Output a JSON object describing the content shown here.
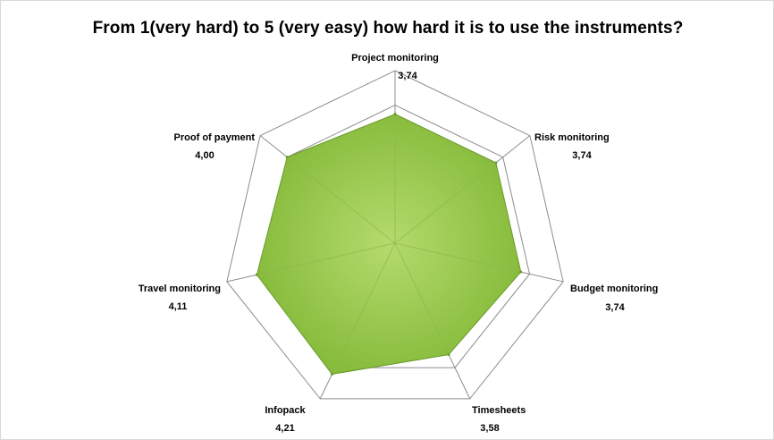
{
  "chart_data": {
    "type": "radar",
    "title": "From 1(very hard) to 5 (very easy) how hard it is to use the instruments?",
    "categories": [
      "Project monitoring",
      "Risk monitoring",
      "Budget monitoring",
      "Timesheets",
      "Infopack",
      "Travel monitoring",
      "Proof of payment"
    ],
    "series": [
      {
        "values": [
          3.74,
          3.74,
          3.74,
          3.58,
          4.21,
          4.11,
          4.0
        ],
        "labels": [
          "3,74",
          "3,74",
          "3,74",
          "3,58",
          "4,21",
          "4,11",
          "4,00"
        ]
      }
    ],
    "rlim": [
      0,
      5
    ],
    "grid": true,
    "legend": "none",
    "colors": {
      "fill": "#8dc33f",
      "fill_highlight": "#b4db6c",
      "grid": "#8c8c8c"
    }
  }
}
